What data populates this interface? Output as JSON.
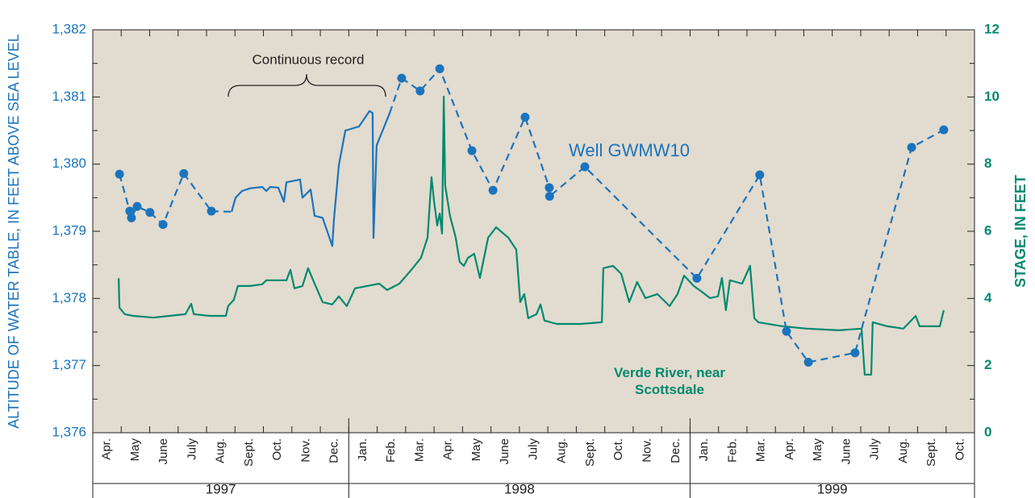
{
  "chart_data": {
    "type": "line",
    "y_label": "ALTITUDE OF WATER TABLE, IN FEET ABOVE SEA LEVEL",
    "y2_label": "STAGE, IN FEET",
    "annotation": "Continuous record",
    "x_groups": [
      {
        "label": "1997",
        "months": [
          "Apr.",
          "May",
          "June",
          "July",
          "Aug.",
          "Sept.",
          "Oct.",
          "Nov.",
          "Dec."
        ]
      },
      {
        "label": "1998",
        "months": [
          "Jan.",
          "Feb.",
          "Mar.",
          "Apr.",
          "May",
          "June",
          "July",
          "Aug.",
          "Sept.",
          "Oct.",
          "Nov.",
          "Dec."
        ]
      },
      {
        "label": "1999",
        "months": [
          "Jan.",
          "Feb.",
          "Mar.",
          "Apr.",
          "May",
          "June",
          "July",
          "Aug.",
          "Sept.",
          "Oct."
        ]
      }
    ],
    "xlim": [
      0,
      31
    ],
    "ylim": [
      1376,
      1382
    ],
    "yticks": [
      {
        "value": 1376,
        "label": "1,376"
      },
      {
        "value": 1377,
        "label": "1,377"
      },
      {
        "value": 1378,
        "label": "1,378"
      },
      {
        "value": 1379,
        "label": "1,379"
      },
      {
        "value": 1380,
        "label": "1,380"
      },
      {
        "value": 1381,
        "label": "1,381"
      },
      {
        "value": 1382,
        "label": "1,382"
      }
    ],
    "y2lim": [
      0,
      12
    ],
    "y2ticks": [
      0,
      2,
      4,
      6,
      8,
      10,
      12
    ],
    "series": [
      {
        "name": "Well GWMW10",
        "color": "#1a74bd",
        "measurements": {
          "x": [
            0.94,
            1.3,
            1.36,
            1.56,
            2.01,
            2.47,
            3.2,
            4.17,
            10.86,
            11.51,
            12.2,
            13.33,
            14.07,
            15.2,
            16.05,
            16.06,
            17.3,
            21.24,
            23.45,
            24.39,
            25.16,
            26.8,
            28.79,
            29.92
          ],
          "values": [
            1379.85,
            1379.3,
            1379.2,
            1379.37,
            1379.28,
            1379.1,
            1379.86,
            1379.3,
            1381.28,
            1381.09,
            1381.42,
            1380.2,
            1379.61,
            1380.7,
            1379.65,
            1379.52,
            1379.96,
            1378.3,
            1379.84,
            1377.51,
            1377.05,
            1377.19,
            1380.25,
            1380.51
          ]
        },
        "continuous": {
          "x": [
            4.88,
            5.02,
            5.25,
            5.53,
            5.96,
            6.1,
            6.24,
            6.52,
            6.72,
            6.81,
            7.29,
            7.37,
            7.66,
            7.8,
            8.08,
            8.42,
            8.48,
            8.65,
            8.88,
            9.36,
            9.73,
            9.84,
            9.87,
            9.98,
            10.21,
            10.44
          ],
          "values": [
            1379.29,
            1379.5,
            1379.6,
            1379.64,
            1379.66,
            1379.6,
            1379.66,
            1379.65,
            1379.44,
            1379.73,
            1379.77,
            1379.5,
            1379.62,
            1379.23,
            1379.2,
            1378.78,
            1379.18,
            1379.98,
            1380.5,
            1380.56,
            1380.79,
            1380.76,
            1378.9,
            1380.28,
            1380.52,
            1380.76
          ]
        }
      },
      {
        "name": "Verde River, near Scottsdale",
        "color": "#00896f",
        "axis": "y2",
        "x": [
          0.91,
          0.94,
          1.13,
          1.42,
          1.7,
          2.13,
          2.69,
          3.26,
          3.46,
          3.55,
          4.11,
          4.68,
          4.76,
          4.96,
          5.1,
          5.53,
          5.96,
          6.1,
          6.52,
          6.81,
          6.95,
          7.09,
          7.37,
          7.57,
          7.8,
          8.08,
          8.42,
          8.65,
          8.93,
          9.22,
          9.64,
          10.07,
          10.35,
          10.78,
          11.2,
          11.54,
          11.77,
          11.91,
          12.0,
          12.11,
          12.2,
          12.28,
          12.34,
          12.39,
          12.56,
          12.76,
          12.9,
          13.05,
          13.19,
          13.41,
          13.61,
          13.9,
          14.18,
          14.61,
          14.89,
          15.03,
          15.17,
          15.31,
          15.6,
          15.74,
          15.88,
          16.31,
          17.16,
          17.9,
          17.95,
          18.29,
          18.58,
          18.86,
          19.14,
          19.43,
          19.85,
          20.28,
          20.56,
          20.79,
          21.13,
          21.41,
          21.7,
          21.98,
          22.12,
          22.26,
          22.4,
          22.83,
          23.11,
          23.26,
          23.4,
          24.25,
          25.1,
          26.23,
          27.03,
          27.14,
          27.37,
          27.42,
          27.94,
          28.5,
          28.93,
          29.07,
          29.78,
          29.92
        ],
        "values": [
          4.6,
          3.72,
          3.53,
          3.48,
          3.46,
          3.43,
          3.48,
          3.53,
          3.84,
          3.53,
          3.48,
          3.48,
          3.77,
          3.96,
          4.37,
          4.37,
          4.42,
          4.54,
          4.54,
          4.54,
          4.85,
          4.3,
          4.37,
          4.9,
          4.44,
          3.89,
          3.82,
          4.06,
          3.77,
          4.3,
          4.37,
          4.44,
          4.25,
          4.44,
          4.85,
          5.21,
          5.81,
          7.61,
          6.89,
          6.17,
          6.53,
          5.93,
          10.01,
          7.37,
          6.46,
          5.81,
          5.09,
          4.97,
          5.21,
          5.33,
          4.61,
          5.81,
          6.12,
          5.81,
          5.45,
          3.89,
          4.13,
          3.41,
          3.53,
          3.82,
          3.34,
          3.24,
          3.24,
          3.29,
          4.9,
          4.97,
          4.73,
          3.89,
          4.49,
          4.01,
          4.13,
          3.77,
          4.13,
          4.68,
          4.37,
          4.2,
          4.01,
          4.06,
          4.61,
          3.65,
          4.54,
          4.44,
          4.97,
          3.41,
          3.29,
          3.17,
          3.1,
          3.05,
          3.1,
          1.73,
          1.73,
          3.29,
          3.17,
          3.1,
          3.48,
          3.17,
          3.17,
          3.65
        ]
      }
    ]
  }
}
